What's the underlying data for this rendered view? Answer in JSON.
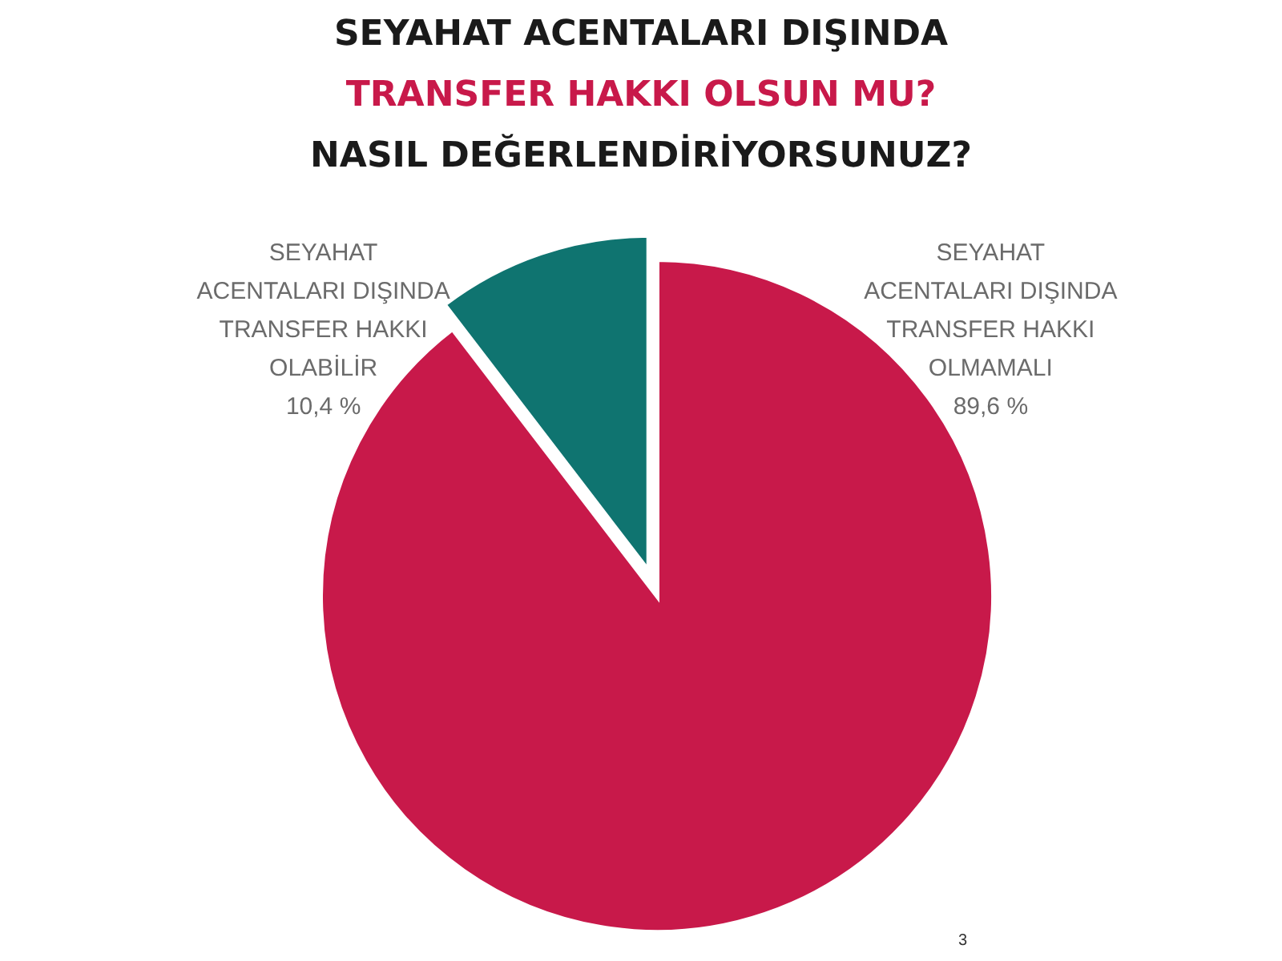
{
  "chart_data": {
    "type": "pie",
    "title": "SEYAHAT ACENTALARI DIŞINDA\nTRANSFER HAKKI OLSUN MU?\nNASIL DEĞERLENDİRİYORSUNUZ?",
    "categories": [
      "SEYAHAT\nACENTALARI DIŞINDA\nTRANSFER HAKKI\nOLABİLİR",
      "SEYAHAT\nACENTALARI DIŞINDA\nTRANSFER HAKKI\nOLMAMALI"
    ],
    "values": [
      10.4,
      89.6
    ],
    "colors": [
      "#0f7470",
      "#c8194a"
    ],
    "value_labels": [
      "10,4 %",
      "89,6 %"
    ],
    "annotations": [
      "3"
    ]
  }
}
